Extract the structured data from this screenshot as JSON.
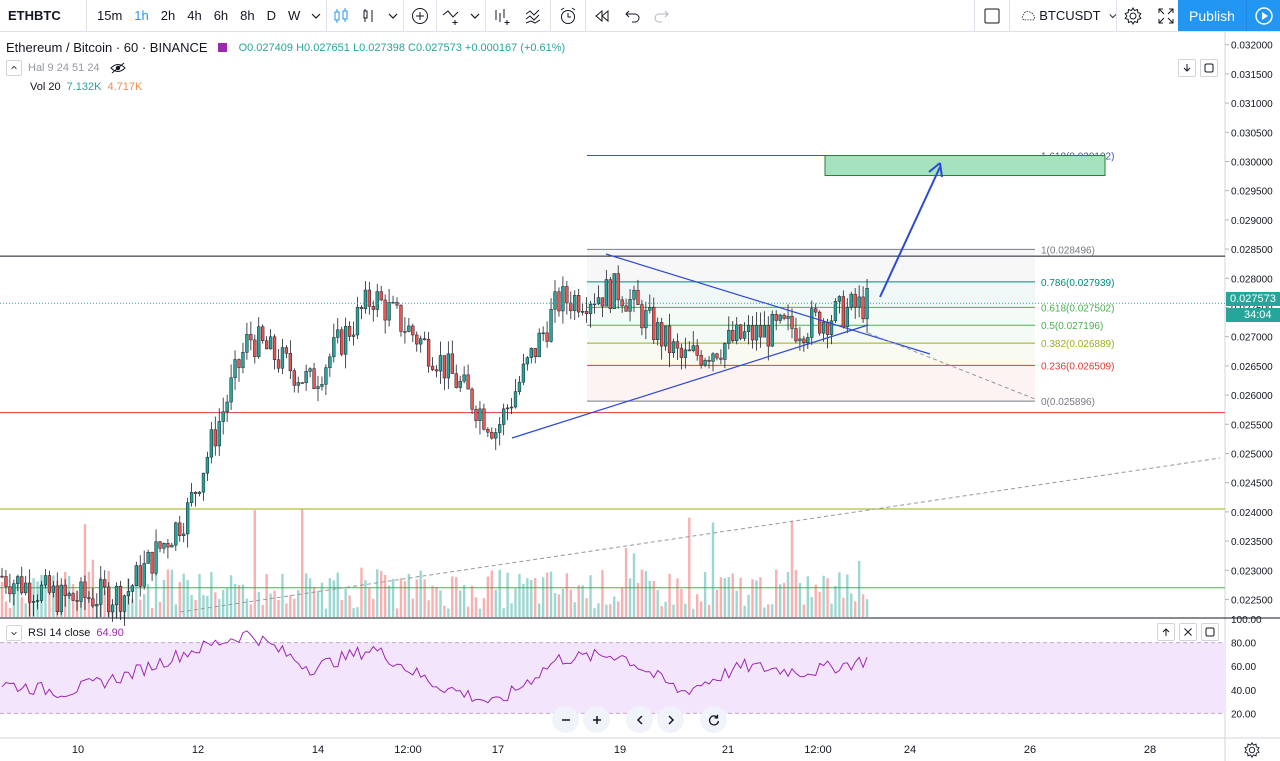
{
  "toolbar": {
    "symbol": "ETHBTC",
    "intervals": [
      "15m",
      "1h",
      "2h",
      "4h",
      "6h",
      "8h",
      "D",
      "W"
    ],
    "active_interval": "1h",
    "compare_symbol": "BTCUSDT",
    "publish_label": "Publish"
  },
  "legend": {
    "title": "Ethereum / Bitcoin · 60 · BINANCE",
    "open": "O0.027409",
    "high": "H0.027651",
    "low": "L0.027398",
    "close": "C0.027573",
    "change": "+0.000167 (+0.61%)"
  },
  "indicators": {
    "hal_label": "Hal 9 24 51 24",
    "vol_label": "Vol 20",
    "vol_value1": "7.132K",
    "vol_value2": "4.717K",
    "rsi_label": "RSI 14 close",
    "rsi_value": "64.90"
  },
  "price_scale": {
    "labels": [
      "0.032000",
      "0.031500",
      "0.031000",
      "0.030500",
      "0.030000",
      "0.029500",
      "0.029000",
      "0.028500",
      "0.028000",
      "0.027500",
      "0.027000",
      "0.026500",
      "0.026000",
      "0.025500",
      "0.025000",
      "0.024500",
      "0.024000",
      "0.023500",
      "0.023000",
      "0.022500"
    ],
    "last_price": "0.027573",
    "countdown": "34:04"
  },
  "rsi_scale": {
    "labels": [
      "100.00",
      "80.00",
      "60.00",
      "40.00",
      "20.00"
    ]
  },
  "time_axis": {
    "labels": [
      "10",
      "12",
      "14",
      "12:00",
      "17",
      "19",
      "21",
      "12:00",
      "24",
      "26",
      "28"
    ]
  },
  "fib_levels": [
    {
      "label": "1.618(0.030102)",
      "price": 0.030102,
      "color": "#3f51b5"
    },
    {
      "label": "1(0.028496)",
      "price": 0.028496,
      "color": "#787b86"
    },
    {
      "label": "0.786(0.027939)",
      "price": 0.027939,
      "color": "#00897b"
    },
    {
      "label": "0.618(0.027502)",
      "price": 0.027502,
      "color": "#4caf50"
    },
    {
      "label": "0.5(0.027196)",
      "price": 0.027196,
      "color": "#4caf50"
    },
    {
      "label": "0.382(0.026889)",
      "price": 0.026889,
      "color": "#9fae1a"
    },
    {
      "label": "0.236(0.026509)",
      "price": 0.026509,
      "color": "#e53935"
    },
    {
      "label": "0(0.025896)",
      "price": 0.025896,
      "color": "#787b86"
    }
  ],
  "colors": {
    "up": "#26a69a",
    "down": "#ef5350",
    "accent": "#2196f3",
    "rsi": "#9c27b0",
    "rsi_band": "#f3e5fb",
    "target_box": "#a5e2c0",
    "arrow": "#2b48d6"
  },
  "icons": [
    "candles-icon",
    "bar-style-icon",
    "add-indicator-icon",
    "line-tool-icon",
    "indicators-icon",
    "templates-icon",
    "alert-icon",
    "replay-icon",
    "undo-icon",
    "redo-icon",
    "layout-icon",
    "cloud-icon",
    "settings-icon",
    "fullscreen-icon",
    "camera-icon",
    "play-icon"
  ],
  "chart_data": {
    "type": "candlestick",
    "symbol": "ETHBTC",
    "interval": "60",
    "ylim": [
      0.0222,
      0.0322
    ],
    "x": [
      "9",
      "10",
      "11",
      "12",
      "13",
      "14",
      "15",
      "16",
      "17",
      "18",
      "19",
      "20",
      "21",
      "22",
      "23"
    ],
    "close": [
      0.0229,
      0.0225,
      0.0226,
      0.024,
      0.027,
      0.0262,
      0.0277,
      0.0267,
      0.0254,
      0.0276,
      0.0278,
      0.0266,
      0.027,
      0.0272,
      0.02757
    ],
    "high": [
      0.023,
      0.0228,
      0.0233,
      0.0248,
      0.0271,
      0.0267,
      0.0279,
      0.0278,
      0.0262,
      0.0285,
      0.0282,
      0.0273,
      0.0276,
      0.0274,
      0.02765
    ],
    "low": [
      0.0224,
      0.0222,
      0.0224,
      0.0232,
      0.0239,
      0.0255,
      0.0264,
      0.0252,
      0.0245,
      0.026,
      0.0264,
      0.0259,
      0.0266,
      0.0268,
      0.0272
    ],
    "rsi": [
      45,
      38,
      52,
      72,
      88,
      58,
      75,
      45,
      28,
      66,
      70,
      38,
      60,
      55,
      65
    ],
    "horizontal_lines": [
      0.02838,
      0.0257,
      0.02405,
      0.0227
    ],
    "last_price": 0.027573
  }
}
